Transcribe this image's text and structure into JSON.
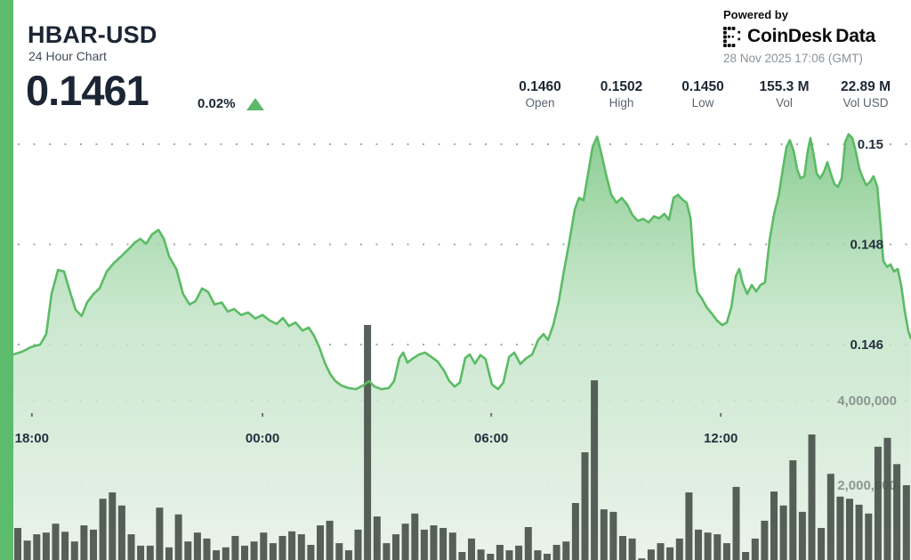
{
  "header": {
    "symbol": "HBAR-USD",
    "subtitle": "24 Hour Chart",
    "price": "0.1461",
    "change_percent": "0.02%",
    "change_direction": "up"
  },
  "branding": {
    "powered_by": "Powered by",
    "provider_name": "CoinDesk",
    "provider_suffix": "Data",
    "timestamp": "28 Nov 2025 17:06 (GMT)"
  },
  "stats": [
    {
      "value": "0.1460",
      "label": "Open"
    },
    {
      "value": "0.1502",
      "label": "High"
    },
    {
      "value": "0.1450",
      "label": "Low"
    },
    {
      "value": "155.3 M",
      "label": "Vol"
    },
    {
      "value": "22.89 M",
      "label": "Vol USD"
    }
  ],
  "icons": {
    "change_up": "triangle-up",
    "provider_logo": "coindesk-dot-mark"
  },
  "colors": {
    "accent_green": "#5cbc6c",
    "line_green": "#5bbb65",
    "fill_top": "#82c98a",
    "fill_bottom": "#ebf2eb",
    "volume_bar": "#49534b",
    "text_dark": "#1b2533",
    "text_gray": "#5a6470",
    "text_light": "#8b9299",
    "grid_dot": "#a6aaaa"
  },
  "chart_data": {
    "type": "area",
    "title": "HBAR-USD 24 Hour Chart",
    "legend": false,
    "grid": "dotted-horizontal",
    "x_axis": {
      "unit": "hours-since-start",
      "ticks": [
        {
          "label": "18:00",
          "h": 0.49
        },
        {
          "label": "00:00",
          "h": 6.59
        },
        {
          "label": "06:00",
          "h": 12.64
        },
        {
          "label": "12:00",
          "h": 18.71
        }
      ]
    },
    "price_axis": {
      "side": "right",
      "range": [
        0.1448,
        0.1505
      ],
      "ticks": [
        {
          "label": "0.15",
          "value": 0.15
        },
        {
          "label": "0.148",
          "value": 0.148
        },
        {
          "label": "0.146",
          "value": 0.146
        }
      ]
    },
    "volume_axis": {
      "side": "right",
      "ticks": [
        {
          "label": "4,000,000",
          "value": 4000000
        },
        {
          "label": "2,000,000",
          "value": 2000000
        }
      ]
    },
    "series": [
      {
        "name": "Price (USD)",
        "type": "area",
        "points": [
          [
            0,
            0.1458
          ],
          [
            0.24,
            0.14586
          ],
          [
            0.47,
            0.14595
          ],
          [
            0.71,
            0.146
          ],
          [
            0.87,
            0.14621
          ],
          [
            1.01,
            0.14701
          ],
          [
            1.18,
            0.14749
          ],
          [
            1.34,
            0.14746
          ],
          [
            1.48,
            0.1471
          ],
          [
            1.65,
            0.14669
          ],
          [
            1.81,
            0.14657
          ],
          [
            1.95,
            0.14684
          ],
          [
            2.12,
            0.14701
          ],
          [
            2.28,
            0.14712
          ],
          [
            2.47,
            0.14746
          ],
          [
            2.66,
            0.14763
          ],
          [
            2.85,
            0.14776
          ],
          [
            3.04,
            0.1479
          ],
          [
            3.22,
            0.14804
          ],
          [
            3.36,
            0.14811
          ],
          [
            3.51,
            0.14801
          ],
          [
            3.67,
            0.1482
          ],
          [
            3.84,
            0.14829
          ],
          [
            3.98,
            0.14811
          ],
          [
            4.12,
            0.14776
          ],
          [
            4.31,
            0.14751
          ],
          [
            4.49,
            0.14701
          ],
          [
            4.66,
            0.1468
          ],
          [
            4.82,
            0.14687
          ],
          [
            4.99,
            0.14712
          ],
          [
            5.15,
            0.14705
          ],
          [
            5.32,
            0.1468
          ],
          [
            5.51,
            0.14684
          ],
          [
            5.67,
            0.14666
          ],
          [
            5.84,
            0.14671
          ],
          [
            6.02,
            0.14659
          ],
          [
            6.21,
            0.14664
          ],
          [
            6.4,
            0.14652
          ],
          [
            6.59,
            0.14659
          ],
          [
            6.78,
            0.14648
          ],
          [
            6.96,
            0.14641
          ],
          [
            7.13,
            0.14653
          ],
          [
            7.29,
            0.14637
          ],
          [
            7.46,
            0.14644
          ],
          [
            7.65,
            0.14628
          ],
          [
            7.81,
            0.14634
          ],
          [
            7.95,
            0.14618
          ],
          [
            8.09,
            0.14595
          ],
          [
            8.24,
            0.14563
          ],
          [
            8.38,
            0.14541
          ],
          [
            8.52,
            0.14527
          ],
          [
            8.68,
            0.14518
          ],
          [
            8.87,
            0.14513
          ],
          [
            9.06,
            0.14511
          ],
          [
            9.25,
            0.14518
          ],
          [
            9.41,
            0.14527
          ],
          [
            9.55,
            0.14516
          ],
          [
            9.74,
            0.14511
          ],
          [
            9.93,
            0.14513
          ],
          [
            10.07,
            0.14527
          ],
          [
            10.21,
            0.14573
          ],
          [
            10.31,
            0.14584
          ],
          [
            10.42,
            0.14564
          ],
          [
            10.56,
            0.14572
          ],
          [
            10.73,
            0.1458
          ],
          [
            10.89,
            0.14584
          ],
          [
            11.06,
            0.14575
          ],
          [
            11.22,
            0.14566
          ],
          [
            11.39,
            0.14548
          ],
          [
            11.53,
            0.14527
          ],
          [
            11.67,
            0.14516
          ],
          [
            11.81,
            0.14524
          ],
          [
            11.95,
            0.14573
          ],
          [
            12.07,
            0.1458
          ],
          [
            12.21,
            0.14562
          ],
          [
            12.35,
            0.14579
          ],
          [
            12.49,
            0.14571
          ],
          [
            12.66,
            0.1452
          ],
          [
            12.82,
            0.14511
          ],
          [
            12.96,
            0.14524
          ],
          [
            13.11,
            0.14575
          ],
          [
            13.25,
            0.14584
          ],
          [
            13.41,
            0.14561
          ],
          [
            13.55,
            0.14572
          ],
          [
            13.72,
            0.1458
          ],
          [
            13.88,
            0.14609
          ],
          [
            14.02,
            0.14621
          ],
          [
            14.14,
            0.14609
          ],
          [
            14.28,
            0.14639
          ],
          [
            14.42,
            0.14684
          ],
          [
            14.56,
            0.14746
          ],
          [
            14.71,
            0.14808
          ],
          [
            14.85,
            0.1487
          ],
          [
            14.96,
            0.14893
          ],
          [
            15.08,
            0.14888
          ],
          [
            15.2,
            0.14941
          ],
          [
            15.32,
            0.14995
          ],
          [
            15.44,
            0.15015
          ],
          [
            15.55,
            0.14982
          ],
          [
            15.67,
            0.14941
          ],
          [
            15.81,
            0.149
          ],
          [
            15.95,
            0.14883
          ],
          [
            16.09,
            0.14893
          ],
          [
            16.24,
            0.14879
          ],
          [
            16.38,
            0.14858
          ],
          [
            16.52,
            0.14847
          ],
          [
            16.66,
            0.14851
          ],
          [
            16.8,
            0.14844
          ],
          [
            16.94,
            0.14856
          ],
          [
            17.08,
            0.14852
          ],
          [
            17.22,
            0.14861
          ],
          [
            17.34,
            0.14849
          ],
          [
            17.46,
            0.14893
          ],
          [
            17.58,
            0.14899
          ],
          [
            17.69,
            0.1489
          ],
          [
            17.81,
            0.14883
          ],
          [
            17.91,
            0.14852
          ],
          [
            18,
            0.14755
          ],
          [
            18.09,
            0.14705
          ],
          [
            18.21,
            0.14692
          ],
          [
            18.33,
            0.14675
          ],
          [
            18.47,
            0.14662
          ],
          [
            18.61,
            0.14648
          ],
          [
            18.75,
            0.14639
          ],
          [
            18.87,
            0.14644
          ],
          [
            18.99,
            0.14675
          ],
          [
            19.11,
            0.14737
          ],
          [
            19.2,
            0.14751
          ],
          [
            19.29,
            0.14723
          ],
          [
            19.41,
            0.14701
          ],
          [
            19.53,
            0.14719
          ],
          [
            19.65,
            0.14706
          ],
          [
            19.76,
            0.14719
          ],
          [
            19.88,
            0.14724
          ],
          [
            20,
            0.14808
          ],
          [
            20.12,
            0.14861
          ],
          [
            20.24,
            0.14897
          ],
          [
            20.35,
            0.1495
          ],
          [
            20.45,
            0.14995
          ],
          [
            20.54,
            0.15008
          ],
          [
            20.64,
            0.14986
          ],
          [
            20.73,
            0.1495
          ],
          [
            20.82,
            0.14932
          ],
          [
            20.92,
            0.14936
          ],
          [
            21.01,
            0.14986
          ],
          [
            21.08,
            0.15012
          ],
          [
            21.15,
            0.14986
          ],
          [
            21.25,
            0.14941
          ],
          [
            21.34,
            0.14932
          ],
          [
            21.44,
            0.14945
          ],
          [
            21.53,
            0.14964
          ],
          [
            21.62,
            0.14941
          ],
          [
            21.72,
            0.1492
          ],
          [
            21.81,
            0.14915
          ],
          [
            21.91,
            0.14932
          ],
          [
            22,
            0.15004
          ],
          [
            22.09,
            0.1502
          ],
          [
            22.19,
            0.15012
          ],
          [
            22.28,
            0.14986
          ],
          [
            22.38,
            0.1495
          ],
          [
            22.47,
            0.14932
          ],
          [
            22.56,
            0.14918
          ],
          [
            22.66,
            0.14925
          ],
          [
            22.75,
            0.14936
          ],
          [
            22.85,
            0.14915
          ],
          [
            22.94,
            0.14835
          ],
          [
            23.01,
            0.14767
          ],
          [
            23.11,
            0.14755
          ],
          [
            23.2,
            0.1476
          ],
          [
            23.29,
            0.14746
          ],
          [
            23.39,
            0.14751
          ],
          [
            23.48,
            0.14719
          ],
          [
            23.58,
            0.14666
          ],
          [
            23.67,
            0.14627
          ],
          [
            23.74,
            0.14612
          ]
        ]
      },
      {
        "name": "Volume",
        "type": "bar",
        "interval_hours": 0.25,
        "values_millions": [
          0.99,
          0.69,
          0.84,
          0.88,
          1.09,
          0.9,
          0.67,
          1.05,
          0.95,
          1.68,
          1.83,
          1.52,
          0.84,
          0.57,
          0.57,
          1.47,
          0.53,
          1.31,
          0.67,
          0.88,
          0.74,
          0.46,
          0.53,
          0.8,
          0.57,
          0.67,
          0.88,
          0.63,
          0.8,
          0.91,
          0.84,
          0.59,
          1.05,
          1.16,
          0.63,
          0.46,
          0.95,
          5.79,
          1.26,
          0.63,
          0.84,
          1.09,
          1.33,
          0.95,
          1.05,
          0.99,
          0.88,
          0.42,
          0.74,
          0.48,
          0.38,
          0.59,
          0.46,
          0.57,
          1.01,
          0.46,
          0.38,
          0.59,
          0.67,
          1.58,
          2.78,
          4.48,
          1.43,
          1.37,
          0.8,
          0.74,
          0.27,
          0.48,
          0.63,
          0.53,
          0.74,
          1.83,
          0.95,
          0.88,
          0.84,
          0.63,
          1.96,
          0.42,
          0.74,
          1.16,
          1.85,
          1.52,
          2.59,
          1.37,
          3.2,
          0.99,
          2.27,
          1.73,
          1.68,
          1.54,
          1.33,
          2.91,
          3.12,
          2.5,
          2.0,
          1.6
        ]
      }
    ]
  }
}
